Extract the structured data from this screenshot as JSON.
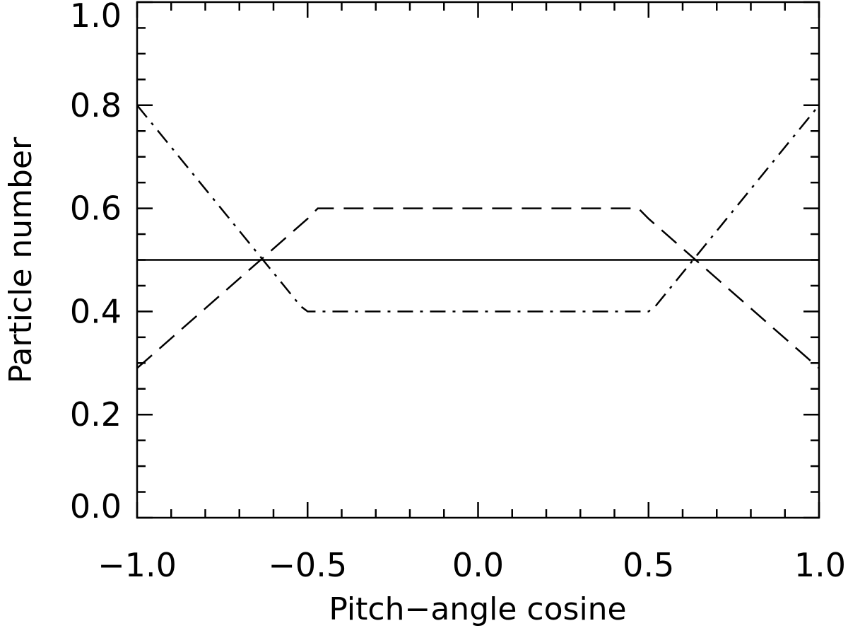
{
  "chart_data": {
    "type": "line",
    "xlabel": "Pitch−angle cosine",
    "ylabel": "Particle number",
    "xlim": [
      -1.0,
      1.0
    ],
    "ylim": [
      0.0,
      1.0
    ],
    "x_ticks": [
      -1.0,
      -0.5,
      0.0,
      0.5,
      1.0
    ],
    "x_tick_labels": [
      "−1.0",
      "−0.5",
      "0.0",
      "0.5",
      "1.0"
    ],
    "y_ticks": [
      0.0,
      0.2,
      0.4,
      0.6,
      0.8,
      1.0
    ],
    "y_tick_labels": [
      "0.0",
      "0.2",
      "0.4",
      "0.6",
      "0.8",
      "1.0"
    ],
    "x_minor_step": 0.1,
    "y_minor_step": 0.05,
    "grid": false,
    "legend": "none",
    "series": [
      {
        "line_style": "solid",
        "x": [
          -1.0,
          1.0
        ],
        "y": [
          0.5,
          0.5
        ]
      },
      {
        "line_style": "dashed",
        "x": [
          -1.0,
          -0.5,
          -0.47,
          0.47,
          0.5,
          1.0
        ],
        "y": [
          0.29,
          0.58,
          0.6,
          0.6,
          0.58,
          0.29
        ]
      },
      {
        "line_style": "dash-dot",
        "x": [
          -1.0,
          -0.52,
          -0.5,
          0.5,
          0.52,
          1.0
        ],
        "y": [
          0.8,
          0.41,
          0.4,
          0.4,
          0.41,
          0.8
        ]
      }
    ]
  }
}
